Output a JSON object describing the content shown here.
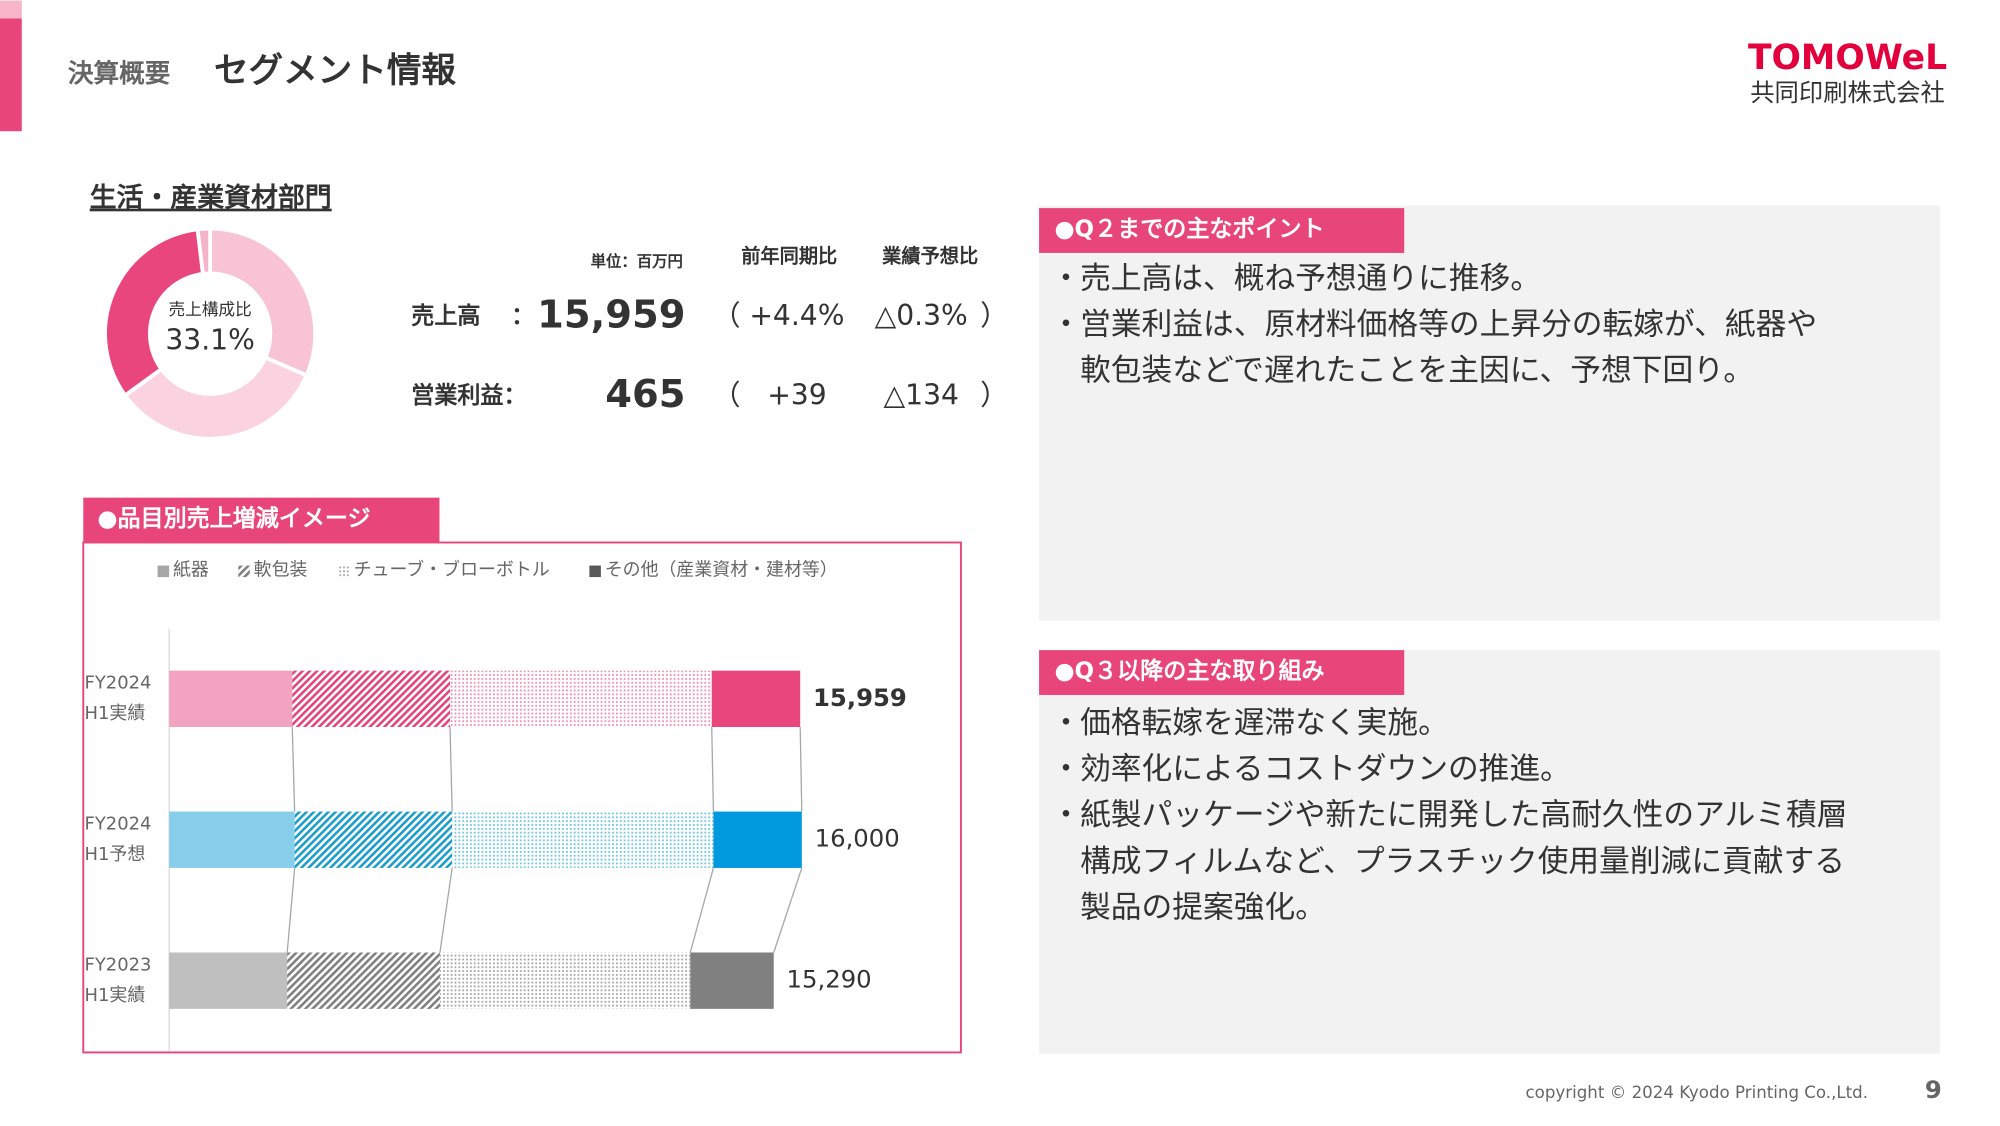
{
  "header": {
    "category": "決算概要",
    "title": "セグメント情報",
    "logo": "TOMOWeL",
    "company": "共同印刷株式会社"
  },
  "section_title": "生活・産業資材部門",
  "kpi": {
    "unit": "単位：百万円",
    "columns": [
      "前年同期比",
      "業績予想比"
    ],
    "rows": [
      [
        "売上高",
        "：",
        "15,959",
        "（",
        "+4.4%",
        "△0.3%",
        "）"
      ],
      [
        "営業利益：",
        "465",
        "（",
        "+39",
        "△134",
        "）"
      ]
    ]
  },
  "chart_data": [
    {
      "type": "donut",
      "center_label": "売上構成比",
      "categories": [
        null,
        null,
        null,
        null
      ],
      "values": [
        31.5,
        33.5,
        33.1,
        1.9
      ],
      "value_labels": [
        null,
        null,
        "33.1%",
        null
      ],
      "colors": [
        "#f7c3d5",
        "#fbd3e0",
        "#e8467c",
        "#f4b3c8"
      ]
    },
    {
      "type": "stacked-hbar",
      "title": "●品目別売上増減イメージ",
      "categories": [
        [
          "FY2024",
          "H1実績"
        ],
        [
          "FY2024",
          "H1予想"
        ],
        [
          "FY2023",
          "H1実績"
        ]
      ],
      "series": [
        {
          "name": "紙器",
          "pattern": "solid",
          "legend_color": "#a6a6a6",
          "colors": [
            "#f2a3bf",
            "#87ceeb",
            "#bfbfbf"
          ],
          "values": [
            3114,
            3174,
            2986
          ]
        },
        {
          "name": "軟包装",
          "pattern": "hatch",
          "legend_color": "#7f7f7f",
          "colors": [
            "#e0457a",
            "#1b9cc9",
            "#7f7f7f"
          ],
          "values": [
            3990,
            3984,
            3863
          ]
        },
        {
          "name": "チューブ・ブローボトル",
          "pattern": "dots",
          "legend_color": "#a6a6a6",
          "colors": [
            "#ec8eb0",
            "#6cc6e0",
            "#a6a6a6"
          ],
          "values": [
            6618,
            6607,
            6330
          ]
        },
        {
          "name": "その他（産業資材・建材等）",
          "pattern": "solid",
          "legend_color": "#595959",
          "colors": [
            "#e8467c",
            "#0099dd",
            "#808080"
          ],
          "values": [
            2237,
            2235,
            2111
          ]
        }
      ],
      "totals": [
        15959,
        16000,
        15290
      ],
      "total_labels": [
        "15,959",
        "16,000",
        "15,290"
      ],
      "xlim": [
        0,
        19700
      ]
    }
  ],
  "panels": [
    {
      "title": "●Q２までの主なポイント",
      "bullet": "・",
      "items": [
        [
          "売上高は、概ね予想通りに推移。"
        ],
        [
          "営業利益は、原材料価格等の上昇分の転嫁が、紙器や",
          "軟包装などで遅れたことを主因に、予想下回り。"
        ]
      ]
    },
    {
      "title": "●Q３以降の主な取り組み",
      "bullet": "・",
      "items": [
        [
          "価格転嫁を遅滞なく実施。"
        ],
        [
          "効率化によるコストダウンの推進。"
        ],
        [
          "紙製パッケージや新たに開発した高耐久性のアルミ積層",
          "構成フィルムなど、プラスチック使用量削減に貢献する",
          "製品の提案強化。"
        ]
      ]
    }
  ],
  "footer": {
    "copyright": "copyright © 2024 Kyodo Printing Co.,Ltd.",
    "page": "9"
  }
}
